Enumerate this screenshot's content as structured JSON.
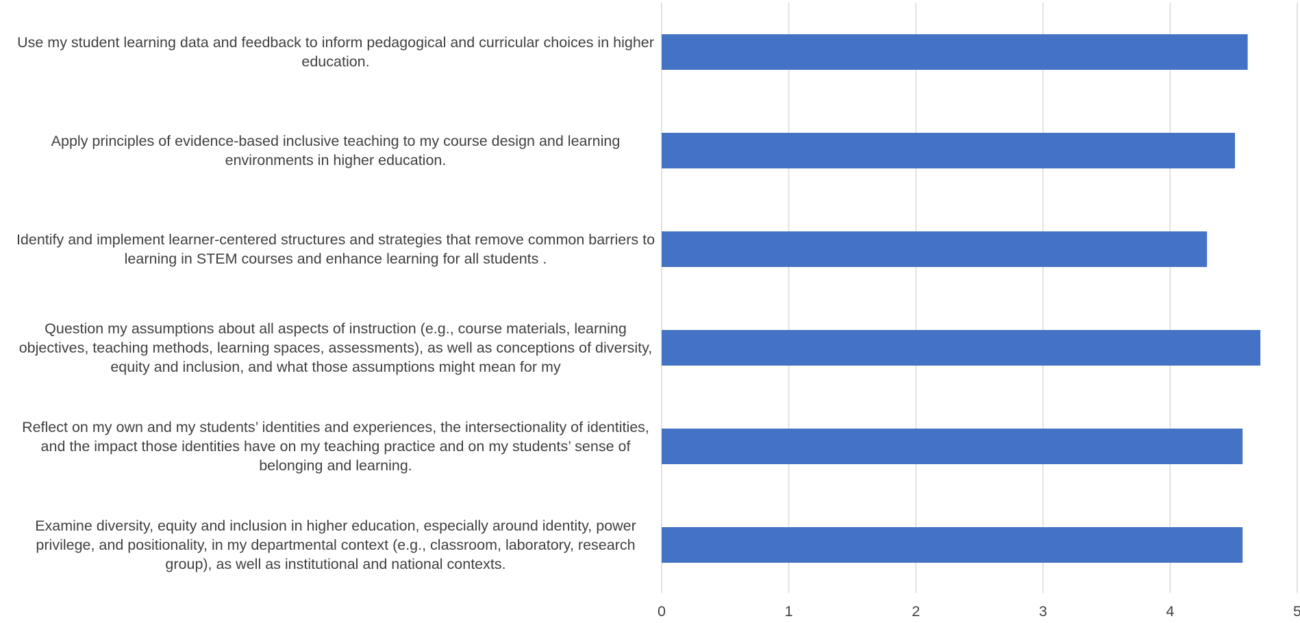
{
  "chart_data": {
    "type": "bar",
    "orientation": "horizontal",
    "title": "",
    "xlabel": "",
    "ylabel": "",
    "xlim": [
      0,
      5
    ],
    "x_ticks": [
      "0",
      "1",
      "2",
      "3",
      "4",
      "5"
    ],
    "grid": "vertical",
    "legend": "none",
    "bar_color": "#4472C4",
    "gridline_color": "#D9D9D9",
    "text_color": "#404040",
    "categories": [
      "Use my student learning data and feedback to inform pedagogical and curricular choices in higher education.",
      "Apply principles of evidence-based inclusive teaching to my course design and learning environments in higher education.",
      "Identify and implement learner-centered structures and strategies that remove common barriers to learning in STEM courses and enhance learning for all students  .",
      "Question my assumptions about all aspects of instruction (e.g., course materials, learning objectives, teaching methods, learning spaces, assessments), as well as conceptions of diversity, equity and inclusion, and what those assumptions might mean for my",
      "Reflect on my own and my students’ identities and experiences, the intersectionality of identities, and the impact those identities have on my teaching practice and on my students’ sense of belonging and learning.",
      "Examine diversity, equity and inclusion in higher education, especially around identity, power privilege, and positionality, in my departmental context (e.g., classroom, laboratory, research group), as well as institutional and national contexts."
    ],
    "values": [
      4.61,
      4.51,
      4.29,
      4.71,
      4.57,
      4.57
    ]
  }
}
